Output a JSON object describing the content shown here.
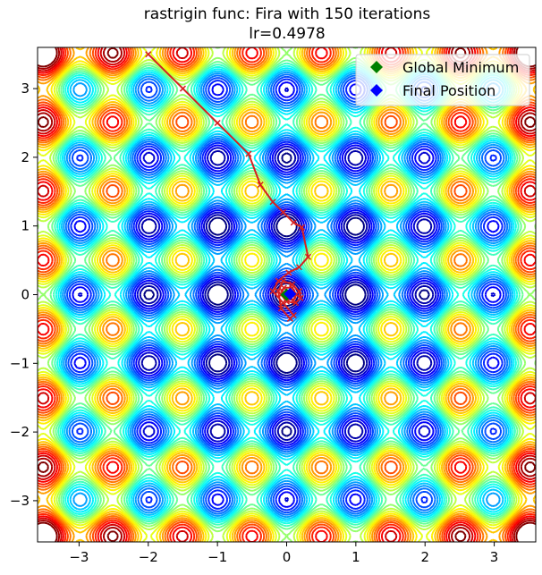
{
  "chart_data": {
    "type": "line",
    "title": "rastrigin func: Fira with 150 iterations",
    "subtitle": "lr=0.4978",
    "xlim": [
      -3.6,
      3.6
    ],
    "ylim": [
      -3.6,
      3.6
    ],
    "xticks": [
      -3,
      -2,
      -1,
      0,
      1,
      2,
      3
    ],
    "yticks": [
      -3,
      -2,
      -1,
      0,
      1,
      2,
      3
    ],
    "xtick_labels": [
      "−3",
      "−2",
      "−1",
      "0",
      "1",
      "2",
      "3"
    ],
    "ytick_labels": [
      "−3",
      "−2",
      "−1",
      "0",
      "1",
      "2",
      "3"
    ],
    "background": "contour",
    "function": "rastrigin",
    "contour_colormap": "jet",
    "grid": false,
    "legend_position": "top-right",
    "legend": [
      {
        "label": "Global Minimum",
        "marker": "diamond",
        "color": "#008000"
      },
      {
        "label": "Final Position",
        "marker": "diamond",
        "color": "#0000ff"
      }
    ],
    "global_minimum": {
      "x": 0.0,
      "y": 0.0
    },
    "final_position": {
      "x": 0.05,
      "y": 0.01
    },
    "path_color": "#d62020",
    "path": {
      "x": [
        -2.0,
        -1.5,
        -1.0,
        -0.55,
        -0.38,
        -0.2,
        -0.05,
        0.1,
        0.22,
        0.31,
        0.18,
        0.03,
        -0.12,
        -0.2,
        -0.05,
        0.1,
        0.05,
        -0.08,
        -0.12,
        -0.05,
        0.08,
        0.18,
        0.2,
        0.13,
        0.0,
        -0.08,
        -0.04,
        0.08,
        0.14,
        0.1,
        0.0,
        -0.05,
        0.02,
        0.05
      ],
      "y": [
        3.5,
        3.0,
        2.5,
        2.05,
        1.6,
        1.35,
        1.2,
        1.05,
        0.98,
        0.55,
        0.4,
        0.32,
        0.2,
        0.05,
        -0.12,
        -0.3,
        -0.35,
        -0.2,
        0.05,
        0.2,
        0.15,
        0.05,
        -0.05,
        -0.12,
        -0.1,
        0.0,
        0.1,
        0.1,
        0.0,
        -0.08,
        -0.06,
        0.02,
        0.04,
        0.01
      ]
    }
  }
}
